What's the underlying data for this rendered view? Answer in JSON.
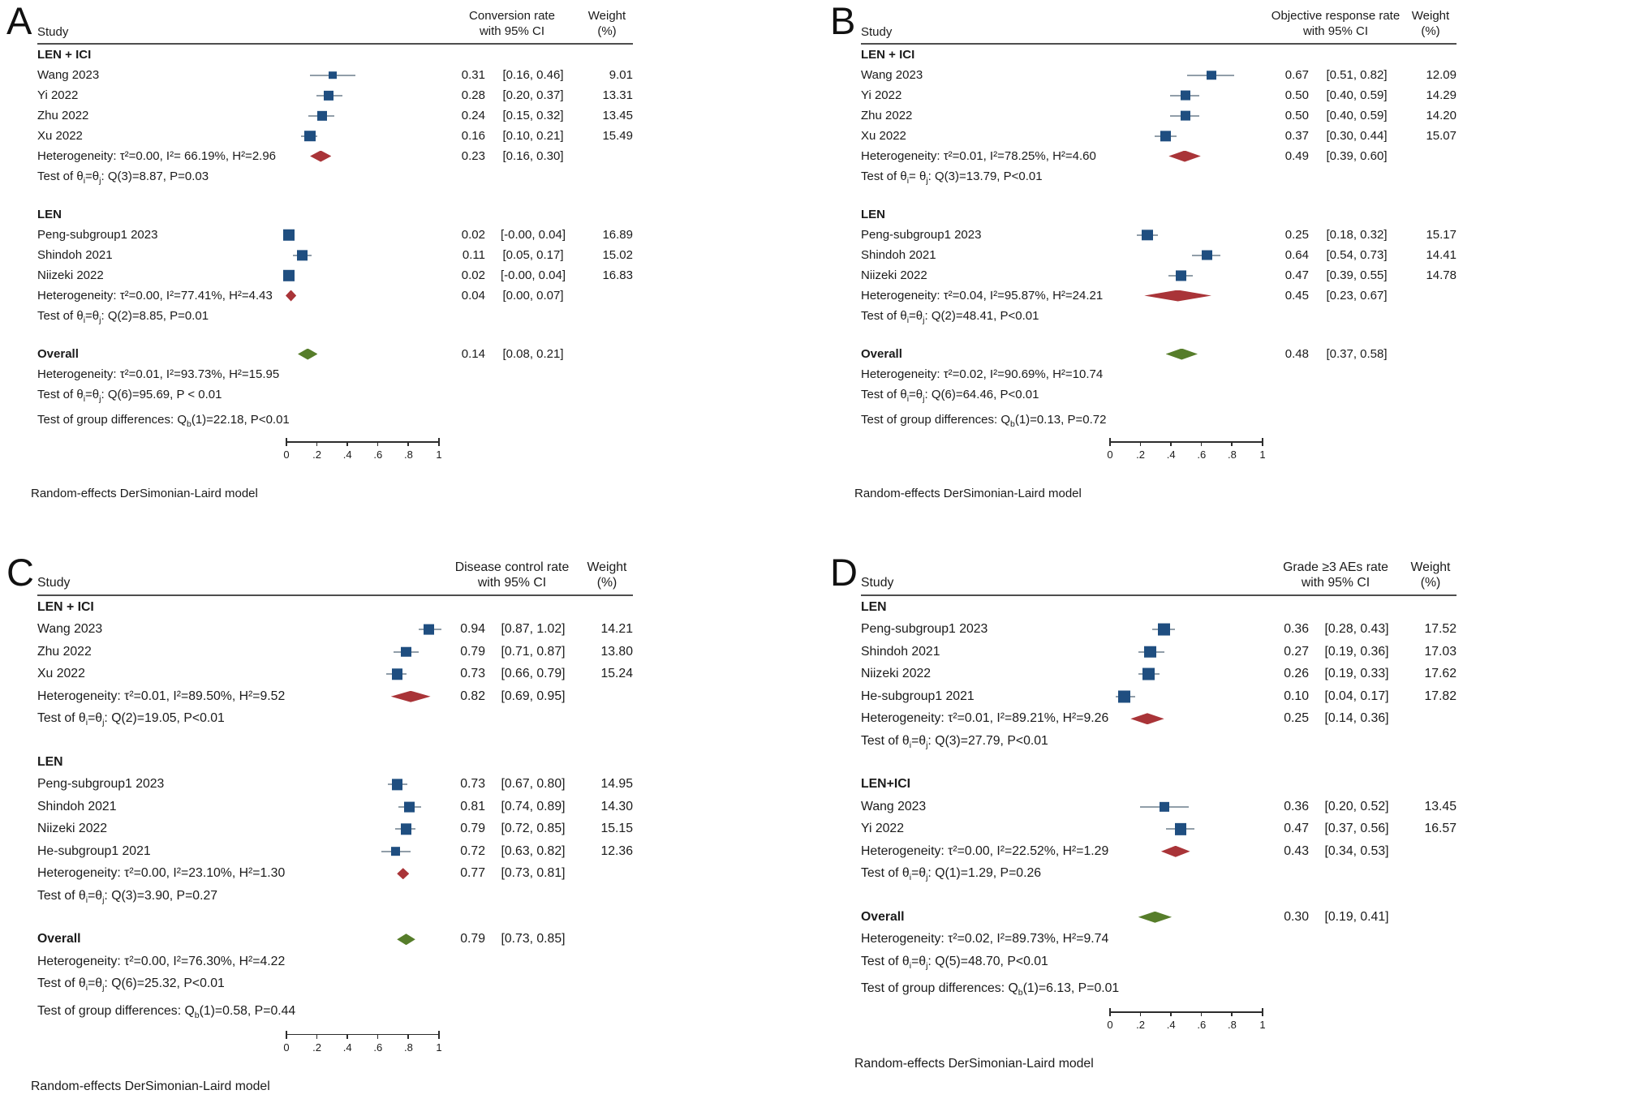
{
  "figure": {
    "column_headers": {
      "study": "Study",
      "weight": [
        "Weight",
        "(%)"
      ]
    },
    "axis": {
      "xlim": [
        0,
        1
      ],
      "ticks": [
        {
          "f": 0,
          "label": "0"
        },
        {
          "f": 0.2,
          "label": ".2"
        },
        {
          "f": 0.4,
          "label": ".4"
        },
        {
          "f": 0.6,
          "label": ".6"
        },
        {
          "f": 0.8,
          "label": ".8"
        },
        {
          "f": 1,
          "label": "1"
        }
      ]
    },
    "model_note": "Random-effects DerSimonian-Laird model",
    "colors": {
      "study_marker": "#1f4e80",
      "ci_line": "#919ea9",
      "subgroup_diamond": "#a93438",
      "overall_diamond": "#567d2a",
      "header_rule": "#4e4e4e",
      "text": "#1b1b1b"
    }
  },
  "chart_data": [
    {
      "type": "forest",
      "panel": "A",
      "tall": false,
      "title_lines": [
        "Conversion rate",
        "with 95% CI"
      ],
      "groups": [
        {
          "label": "LEN + ICI",
          "studies": [
            {
              "name": "Wang 2023",
              "est": 0.31,
              "lo": 0.16,
              "hi": 0.46,
              "est_text": "0.31",
              "ci_text": "[0.16, 0.46]",
              "weight": "9.01"
            },
            {
              "name": "Yi 2022",
              "est": 0.28,
              "lo": 0.2,
              "hi": 0.37,
              "est_text": "0.28",
              "ci_text": "[0.20, 0.37]",
              "weight": "13.31"
            },
            {
              "name": "Zhu 2022",
              "est": 0.24,
              "lo": 0.15,
              "hi": 0.32,
              "est_text": "0.24",
              "ci_text": "[0.15, 0.32]",
              "weight": "13.45"
            },
            {
              "name": "Xu 2022",
              "est": 0.16,
              "lo": 0.1,
              "hi": 0.21,
              "est_text": "0.16",
              "ci_text": "[0.10, 0.21]",
              "weight": "15.49"
            }
          ],
          "pooled": {
            "label": "Heterogeneity: τ²=0.00, I²= 66.19%, H²=2.96",
            "est": 0.23,
            "lo": 0.16,
            "hi": 0.3,
            "est_text": "0.23",
            "ci_text": "[0.16, 0.30]"
          },
          "test": "Test of θ~i~=θ~j~: Q(3)=8.87, P=0.03"
        },
        {
          "label": "LEN",
          "studies": [
            {
              "name": "Peng-subgroup1 2023",
              "est": 0.02,
              "lo": 0.0,
              "hi": 0.04,
              "est_text": "0.02",
              "ci_text": "[-0.00, 0.04]",
              "weight": "16.89"
            },
            {
              "name": "Shindoh 2021",
              "est": 0.11,
              "lo": 0.05,
              "hi": 0.17,
              "est_text": "0.11",
              "ci_text": "[0.05, 0.17]",
              "weight": "15.02"
            },
            {
              "name": "Niizeki 2022",
              "est": 0.02,
              "lo": 0.0,
              "hi": 0.04,
              "est_text": "0.02",
              "ci_text": "[-0.00, 0.04]",
              "weight": "16.83"
            }
          ],
          "pooled": {
            "label": "Heterogeneity: τ²=0.00, I²=77.41%, H²=4.43",
            "est": 0.04,
            "lo": 0.0,
            "hi": 0.07,
            "est_text": "0.04",
            "ci_text": "[0.00, 0.07]"
          },
          "test": "Test of θ~i~=θ~j~: Q(2)=8.85, P=0.01"
        }
      ],
      "overall": {
        "label": "Overall",
        "est": 0.14,
        "lo": 0.08,
        "hi": 0.21,
        "est_text": "0.14",
        "ci_text": "[0.08, 0.21]",
        "het": "Heterogeneity: τ²=0.01, I²=93.73%, H²=15.95",
        "test": "Test of θ~i~=θ~j~: Q(6)=95.69, P < 0.01",
        "group_diff": "Test of group differences: Q~b~(1)=22.18, P<0.01"
      }
    },
    {
      "type": "forest",
      "panel": "B",
      "tall": false,
      "title_lines": [
        "Objective response rate",
        "with 95% CI"
      ],
      "groups": [
        {
          "label": "LEN + ICI",
          "studies": [
            {
              "name": "Wang 2023",
              "est": 0.67,
              "lo": 0.51,
              "hi": 0.82,
              "est_text": "0.67",
              "ci_text": "[0.51, 0.82]",
              "weight": "12.09"
            },
            {
              "name": "Yi 2022",
              "est": 0.5,
              "lo": 0.4,
              "hi": 0.59,
              "est_text": "0.50",
              "ci_text": "[0.40, 0.59]",
              "weight": "14.29"
            },
            {
              "name": "Zhu 2022",
              "est": 0.5,
              "lo": 0.4,
              "hi": 0.59,
              "est_text": "0.50",
              "ci_text": "[0.40, 0.59]",
              "weight": "14.20"
            },
            {
              "name": "Xu 2022",
              "est": 0.37,
              "lo": 0.3,
              "hi": 0.44,
              "est_text": "0.37",
              "ci_text": "[0.30, 0.44]",
              "weight": "15.07"
            }
          ],
          "pooled": {
            "label": "Heterogeneity: τ²=0.01, I²=78.25%, H²=4.60",
            "est": 0.49,
            "lo": 0.39,
            "hi": 0.6,
            "est_text": "0.49",
            "ci_text": "[0.39, 0.60]"
          },
          "test": "Test of θ~i~= θ~j~: Q(3)=13.79, P<0.01"
        },
        {
          "label": "LEN",
          "studies": [
            {
              "name": "Peng-subgroup1 2023",
              "est": 0.25,
              "lo": 0.18,
              "hi": 0.32,
              "est_text": "0.25",
              "ci_text": "[0.18, 0.32]",
              "weight": "15.17"
            },
            {
              "name": "Shindoh 2021",
              "est": 0.64,
              "lo": 0.54,
              "hi": 0.73,
              "est_text": "0.64",
              "ci_text": "[0.54, 0.73]",
              "weight": "14.41"
            },
            {
              "name": "Niizeki 2022",
              "est": 0.47,
              "lo": 0.39,
              "hi": 0.55,
              "est_text": "0.47",
              "ci_text": "[0.39, 0.55]",
              "weight": "14.78"
            }
          ],
          "pooled": {
            "label": "Heterogeneity: τ²=0.04, I²=95.87%, H²=24.21",
            "est": 0.45,
            "lo": 0.23,
            "hi": 0.67,
            "est_text": "0.45",
            "ci_text": "[0.23, 0.67]"
          },
          "test": "Test of θ~i~=θ~j~: Q(2)=48.41, P<0.01"
        }
      ],
      "overall": {
        "label": "Overall",
        "est": 0.48,
        "lo": 0.37,
        "hi": 0.58,
        "est_text": "0.48",
        "ci_text": "[0.37, 0.58]",
        "het": "Heterogeneity: τ²=0.02, I²=90.69%, H²=10.74",
        "test": "Test of θ~i~=θ~j~: Q(6)=64.46, P<0.01",
        "group_diff": "Test of group differences: Q~b~(1)=0.13, P=0.72"
      }
    },
    {
      "type": "forest",
      "panel": "C",
      "tall": true,
      "title_lines": [
        "Disease control rate",
        "with 95% CI"
      ],
      "groups": [
        {
          "label": "LEN + ICI",
          "studies": [
            {
              "name": "Wang 2023",
              "est": 0.94,
              "lo": 0.87,
              "hi": 1.02,
              "est_text": "0.94",
              "ci_text": "[0.87, 1.02]",
              "weight": "14.21"
            },
            {
              "name": "Zhu 2022",
              "est": 0.79,
              "lo": 0.71,
              "hi": 0.87,
              "est_text": "0.79",
              "ci_text": "[0.71, 0.87]",
              "weight": "13.80"
            },
            {
              "name": "Xu 2022",
              "est": 0.73,
              "lo": 0.66,
              "hi": 0.79,
              "est_text": "0.73",
              "ci_text": "[0.66, 0.79]",
              "weight": "15.24"
            }
          ],
          "pooled": {
            "label": "Heterogeneity: τ²=0.01, I²=89.50%, H²=9.52",
            "est": 0.82,
            "lo": 0.69,
            "hi": 0.95,
            "est_text": "0.82",
            "ci_text": "[0.69, 0.95]"
          },
          "test": "Test of θ~i~=θ~j~: Q(2)=19.05, P<0.01"
        },
        {
          "label": "LEN",
          "studies": [
            {
              "name": "Peng-subgroup1 2023",
              "est": 0.73,
              "lo": 0.67,
              "hi": 0.8,
              "est_text": "0.73",
              "ci_text": "[0.67, 0.80]",
              "weight": "14.95"
            },
            {
              "name": "Shindoh 2021",
              "est": 0.81,
              "lo": 0.74,
              "hi": 0.89,
              "est_text": "0.81",
              "ci_text": "[0.74, 0.89]",
              "weight": "14.30"
            },
            {
              "name": "Niizeki 2022",
              "est": 0.79,
              "lo": 0.72,
              "hi": 0.85,
              "est_text": "0.79",
              "ci_text": "[0.72, 0.85]",
              "weight": "15.15"
            },
            {
              "name": "He-subgroup1 2021",
              "est": 0.72,
              "lo": 0.63,
              "hi": 0.82,
              "est_text": "0.72",
              "ci_text": "[0.63, 0.82]",
              "weight": "12.36"
            }
          ],
          "pooled": {
            "label": "Heterogeneity: τ²=0.00, I²=23.10%, H²=1.30",
            "est": 0.77,
            "lo": 0.73,
            "hi": 0.81,
            "est_text": "0.77",
            "ci_text": "[0.73, 0.81]"
          },
          "test": "Test of θ~i~=θ~j~: Q(3)=3.90, P=0.27"
        }
      ],
      "overall": {
        "label": "Overall",
        "est": 0.79,
        "lo": 0.73,
        "hi": 0.85,
        "est_text": "0.79",
        "ci_text": "[0.73, 0.85]",
        "het": "Heterogeneity: τ²=0.00, I²=76.30%, H²=4.22",
        "test": "Test of θ~i~=θ~j~: Q(6)=25.32, P<0.01",
        "group_diff": "Test of group differences: Q~b~(1)=0.58, P=0.44"
      }
    },
    {
      "type": "forest",
      "panel": "D",
      "tall": true,
      "title_lines": [
        "Grade ≥3 AEs rate",
        "with 95% CI"
      ],
      "groups": [
        {
          "label": "LEN",
          "studies": [
            {
              "name": "Peng-subgroup1 2023",
              "est": 0.36,
              "lo": 0.28,
              "hi": 0.43,
              "est_text": "0.36",
              "ci_text": "[0.28, 0.43]",
              "weight": "17.52"
            },
            {
              "name": "Shindoh 2021",
              "est": 0.27,
              "lo": 0.19,
              "hi": 0.36,
              "est_text": "0.27",
              "ci_text": "[0.19, 0.36]",
              "weight": "17.03"
            },
            {
              "name": "Niizeki 2022",
              "est": 0.26,
              "lo": 0.19,
              "hi": 0.33,
              "est_text": "0.26",
              "ci_text": "[0.19, 0.33]",
              "weight": "17.62"
            },
            {
              "name": "He-subgroup1 2021",
              "est": 0.1,
              "lo": 0.04,
              "hi": 0.17,
              "est_text": "0.10",
              "ci_text": "[0.04, 0.17]",
              "weight": "17.82"
            }
          ],
          "pooled": {
            "label": "Heterogeneity: τ²=0.01, I²=89.21%, H²=9.26",
            "est": 0.25,
            "lo": 0.14,
            "hi": 0.36,
            "est_text": "0.25",
            "ci_text": "[0.14, 0.36]"
          },
          "test": "Test of θ~i~=θ~j~: Q(3)=27.79, P<0.01"
        },
        {
          "label": "LEN+ICI",
          "studies": [
            {
              "name": "Wang 2023",
              "est": 0.36,
              "lo": 0.2,
              "hi": 0.52,
              "est_text": "0.36",
              "ci_text": "[0.20, 0.52]",
              "weight": "13.45"
            },
            {
              "name": "Yi 2022",
              "est": 0.47,
              "lo": 0.37,
              "hi": 0.56,
              "est_text": "0.47",
              "ci_text": "[0.37, 0.56]",
              "weight": "16.57"
            }
          ],
          "pooled": {
            "label": "Heterogeneity: τ²=0.00, I²=22.52%, H²=1.29",
            "est": 0.43,
            "lo": 0.34,
            "hi": 0.53,
            "est_text": "0.43",
            "ci_text": "[0.34, 0.53]"
          },
          "test": "Test of θ~i~=θ~j~: Q(1)=1.29, P=0.26"
        }
      ],
      "overall": {
        "label": "Overall",
        "est": 0.3,
        "lo": 0.19,
        "hi": 0.41,
        "est_text": "0.30",
        "ci_text": "[0.19, 0.41]",
        "het": "Heterogeneity: τ²=0.02, I²=89.73%, H²=9.74",
        "test": "Test of θ~i~=θ~j~: Q(5)=48.70, P<0.01",
        "group_diff": "Test of group differences: Q~b~(1)=6.13, P=0.01"
      }
    }
  ]
}
